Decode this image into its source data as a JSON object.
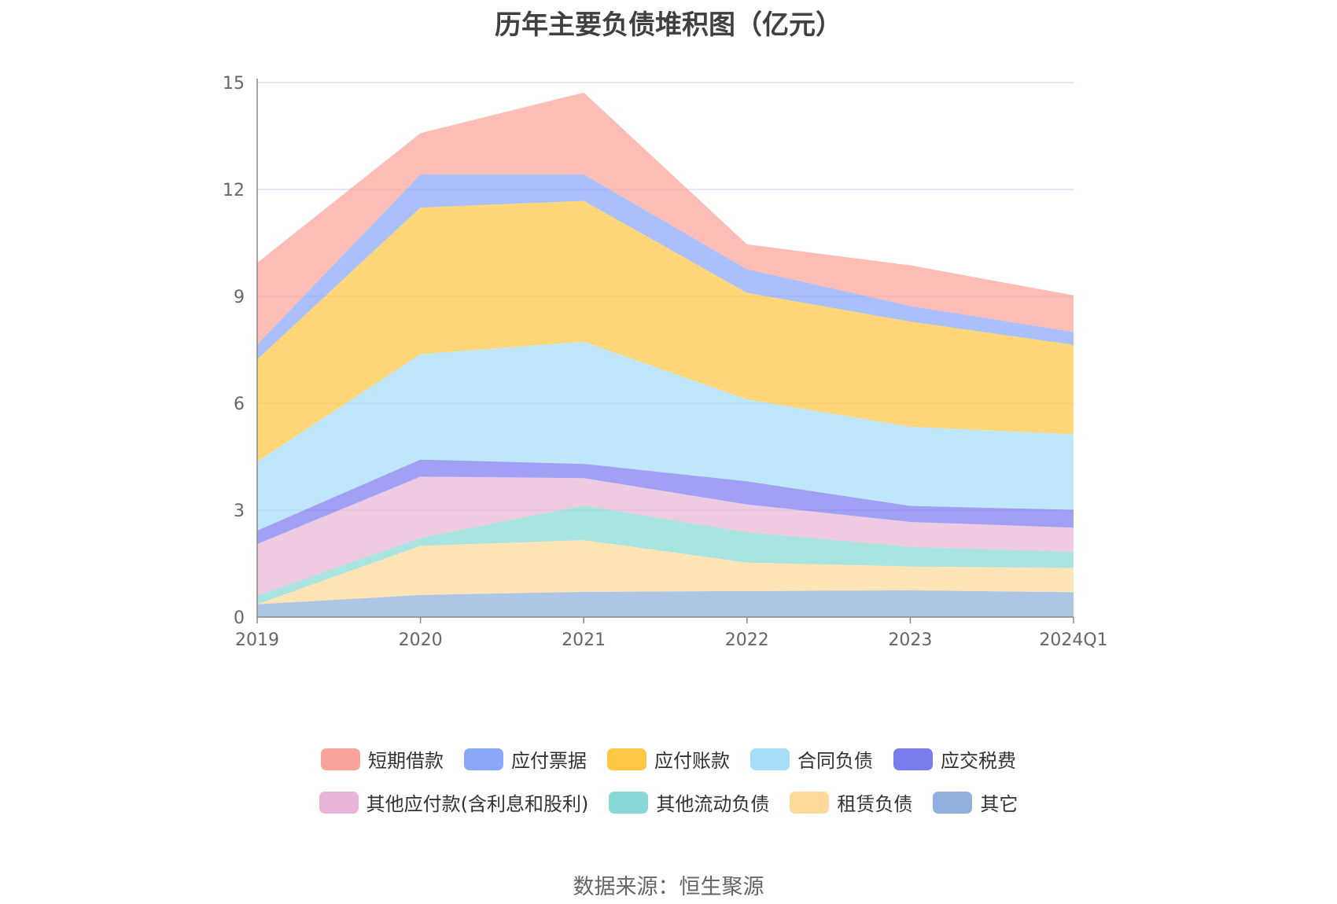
{
  "title": "历年主要负债堆积图（亿元）",
  "source": "数据来源：恒生聚源",
  "chart_data": {
    "type": "area",
    "stacked": true,
    "categories": [
      "2019",
      "2020",
      "2021",
      "2022",
      "2023",
      "2024Q1"
    ],
    "y_ticks": [
      "0",
      "3",
      "6",
      "9",
      "12",
      "15"
    ],
    "ylim": [
      0,
      15
    ],
    "grid": true,
    "legend_position": "bottom",
    "series": [
      {
        "name": "其它",
        "color": "#8fb0dd",
        "values": [
          0.36,
          0.62,
          0.71,
          0.73,
          0.75,
          0.7
        ]
      },
      {
        "name": "租赁负债",
        "color": "#ffd99a",
        "values": [
          0.0,
          1.38,
          1.45,
          0.8,
          0.67,
          0.68
        ]
      },
      {
        "name": "其他流动负债",
        "color": "#88d9d6",
        "values": [
          0.24,
          0.22,
          0.97,
          0.85,
          0.55,
          0.45
        ]
      },
      {
        "name": "其他应付款(含利息和股利)",
        "color": "#e8b5d8",
        "values": [
          1.45,
          1.72,
          0.77,
          0.78,
          0.7,
          0.68
        ]
      },
      {
        "name": "应交税费",
        "color": "#7b7bf0",
        "values": [
          0.38,
          0.48,
          0.4,
          0.65,
          0.45,
          0.5
        ]
      },
      {
        "name": "合同负债",
        "color": "#a8ddf9",
        "values": [
          1.93,
          2.96,
          3.43,
          2.3,
          2.22,
          2.12
        ]
      },
      {
        "name": "应付账款",
        "color": "#ffc844",
        "values": [
          2.87,
          4.11,
          3.95,
          2.99,
          2.95,
          2.51
        ]
      },
      {
        "name": "应付票据",
        "color": "#8aa8f8",
        "values": [
          0.42,
          0.93,
          0.74,
          0.66,
          0.44,
          0.36
        ]
      },
      {
        "name": "短期借款",
        "color": "#f9a49a",
        "values": [
          2.29,
          1.16,
          2.3,
          0.7,
          1.14,
          1.03
        ]
      }
    ],
    "legend_order": [
      "短期借款",
      "应付票据",
      "应付账款",
      "合同负债",
      "应交税费",
      "其他应付款(含利息和股利)",
      "其他流动负债",
      "租赁负债",
      "其它"
    ]
  }
}
